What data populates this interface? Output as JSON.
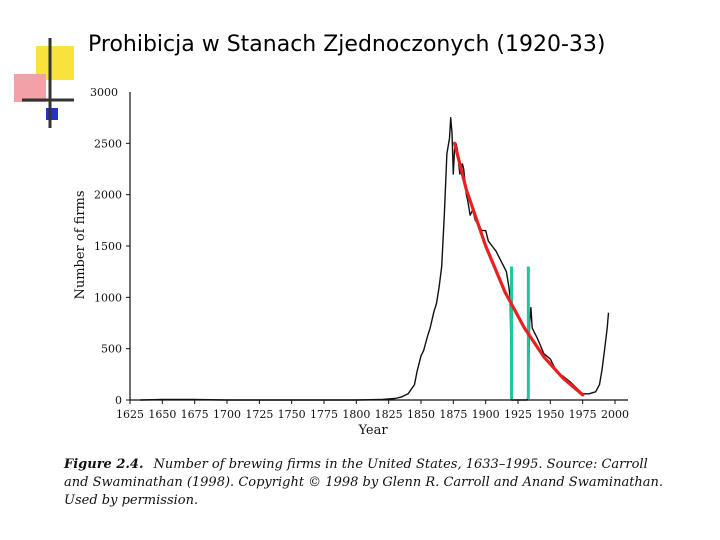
{
  "slide": {
    "title": "Prohibicja w Stanach Zjednoczonych (1920-33)"
  },
  "decoration": {
    "colors": {
      "yellow": "#f7e33b",
      "pink": "#f2a1a7",
      "blue": "#2233cc",
      "dark": "#333333"
    }
  },
  "chart_data": {
    "type": "line",
    "title": "",
    "xlabel": "Year",
    "ylabel": "Number of firms",
    "xlim": [
      1625,
      2000
    ],
    "ylim": [
      0,
      3000
    ],
    "x_ticks": [
      1625,
      1650,
      1675,
      1700,
      1725,
      1750,
      1775,
      1800,
      1825,
      1850,
      1875,
      1900,
      1925,
      1950,
      1975,
      2000
    ],
    "y_ticks": [
      0,
      500,
      1000,
      1500,
      2000,
      2500
    ],
    "y_tick_labels": [
      "0",
      "500",
      "1000",
      "1500",
      "2000",
      "2500"
    ],
    "y_top_label": "3000",
    "series": [
      {
        "color": "#111111",
        "points": [
          [
            1633,
            0
          ],
          [
            1650,
            5
          ],
          [
            1673,
            5
          ],
          [
            1700,
            0
          ],
          [
            1750,
            0
          ],
          [
            1800,
            0
          ],
          [
            1820,
            5
          ],
          [
            1830,
            15
          ],
          [
            1835,
            30
          ],
          [
            1840,
            60
          ],
          [
            1845,
            150
          ],
          [
            1847,
            280
          ],
          [
            1850,
            431
          ],
          [
            1852,
            480
          ],
          [
            1855,
            620
          ],
          [
            1857,
            700
          ],
          [
            1860,
            860
          ],
          [
            1862,
            940
          ],
          [
            1864,
            1100
          ],
          [
            1866,
            1300
          ],
          [
            1868,
            1800
          ],
          [
            1870,
            2400
          ],
          [
            1872,
            2550
          ],
          [
            1873,
            2750
          ],
          [
            1874,
            2600
          ],
          [
            1875,
            2200
          ],
          [
            1876,
            2450
          ],
          [
            1877,
            2500
          ],
          [
            1878,
            2450
          ],
          [
            1880,
            2200
          ],
          [
            1882,
            2300
          ],
          [
            1883,
            2250
          ],
          [
            1885,
            2000
          ],
          [
            1886,
            1950
          ],
          [
            1888,
            1800
          ],
          [
            1890,
            1850
          ],
          [
            1892,
            1750
          ],
          [
            1895,
            1700
          ],
          [
            1897,
            1650
          ],
          [
            1900,
            1650
          ],
          [
            1902,
            1550
          ],
          [
            1905,
            1500
          ],
          [
            1908,
            1450
          ],
          [
            1910,
            1400
          ],
          [
            1912,
            1350
          ],
          [
            1914,
            1300
          ],
          [
            1916,
            1250
          ],
          [
            1918,
            1100
          ],
          [
            1919,
            1000
          ],
          [
            1920,
            0
          ],
          [
            1932,
            0
          ],
          [
            1933,
            50
          ],
          [
            1934,
            750
          ],
          [
            1935,
            900
          ],
          [
            1936,
            700
          ],
          [
            1940,
            600
          ],
          [
            1945,
            450
          ],
          [
            1950,
            400
          ],
          [
            1955,
            270
          ],
          [
            1960,
            230
          ],
          [
            1965,
            180
          ],
          [
            1970,
            120
          ],
          [
            1975,
            60
          ],
          [
            1980,
            60
          ],
          [
            1985,
            80
          ],
          [
            1988,
            150
          ],
          [
            1990,
            300
          ],
          [
            1992,
            500
          ],
          [
            1994,
            700
          ],
          [
            1995,
            850
          ]
        ]
      }
    ],
    "annotations": {
      "trend_line": {
        "color": "#e8201f",
        "points": [
          [
            1876,
            2500
          ],
          [
            1885,
            2050
          ],
          [
            1900,
            1500
          ],
          [
            1915,
            1050
          ],
          [
            1930,
            700
          ],
          [
            1945,
            420
          ],
          [
            1960,
            210
          ],
          [
            1975,
            50
          ]
        ]
      },
      "prohibition_markers": {
        "color": "#1fc6a0",
        "years": [
          1920,
          1933
        ],
        "top_value": 1300
      }
    }
  },
  "caption": {
    "figure_label": "Figure 2.4.",
    "text": "Number of brewing firms in the United States, 1633–1995. Source: Carroll and Swaminathan (1998). Copyright © 1998 by Glenn R. Carroll and Anand Swaminathan. Used by permission."
  }
}
